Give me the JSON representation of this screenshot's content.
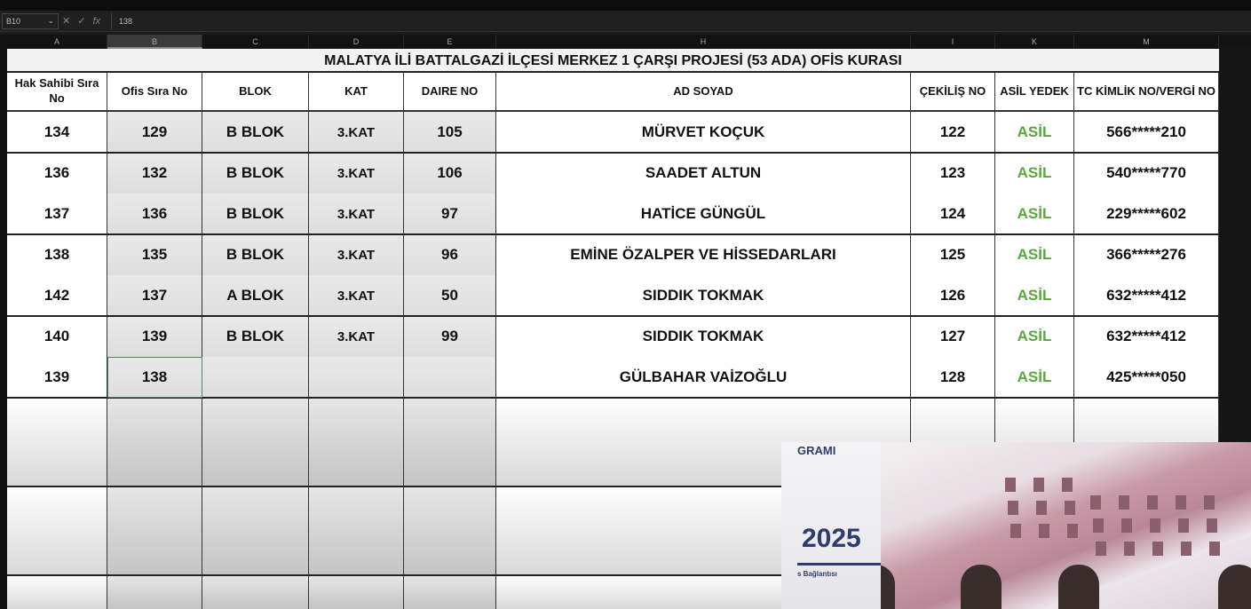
{
  "formula_bar": {
    "name_box": "B10",
    "formula": "138",
    "fx_label": "fx"
  },
  "columns": [
    "A",
    "B",
    "C",
    "D",
    "E",
    "H",
    "I",
    "K",
    "M"
  ],
  "selected_column": "B",
  "sheet": {
    "title": "MALATYA İLİ BATTALGAZİ İLÇESİ MERKEZ 1 ÇARŞI PROJESİ (53 ADA) OFİS KURASI",
    "headers": [
      "Hak Sahibi Sıra No",
      "Ofis Sıra No",
      "BLOK",
      "KAT",
      "DAIRE NO",
      "AD SOYAD",
      "ÇEKİLİŞ NO",
      "ASİL YEDEK",
      "TC KİMLİK NO/VERGİ NO"
    ],
    "rows": [
      [
        "134",
        "129",
        "B BLOK",
        "3.KAT",
        "105",
        "MÜRVET KOÇUK",
        "122",
        "ASİL",
        "566*****210"
      ],
      [
        "136",
        "132",
        "B BLOK",
        "3.KAT",
        "106",
        "SAADET ALTUN",
        "123",
        "ASİL",
        "540*****770"
      ],
      [
        "137",
        "136",
        "B BLOK",
        "3.KAT",
        "97",
        "HATİCE GÜNGÜL",
        "124",
        "ASİL",
        "229*****602"
      ],
      [
        "138",
        "135",
        "B BLOK",
        "3.KAT",
        "96",
        "EMİNE ÖZALPER VE HİSSEDARLARI",
        "125",
        "ASİL",
        "366*****276"
      ],
      [
        "142",
        "137",
        "A BLOK",
        "3.KAT",
        "50",
        "SIDDIK TOKMAK",
        "126",
        "ASİL",
        "632*****412"
      ],
      [
        "140",
        "139",
        "B BLOK",
        "3.KAT",
        "99",
        "SIDDIK TOKMAK",
        "127",
        "ASİL",
        "632*****412"
      ],
      [
        "139",
        "138",
        "",
        "",
        "",
        "GÜLBAHAR VAİZOĞLU",
        "128",
        "ASİL",
        "425*****050"
      ]
    ]
  },
  "overlay": {
    "program_text": "GRAMI",
    "year": "2025",
    "subtitle": "s Bağlantısı"
  },
  "colors": {
    "asil": "#5aa83c",
    "shade": "#e4e4e4",
    "brand": "#2f3b6e"
  }
}
